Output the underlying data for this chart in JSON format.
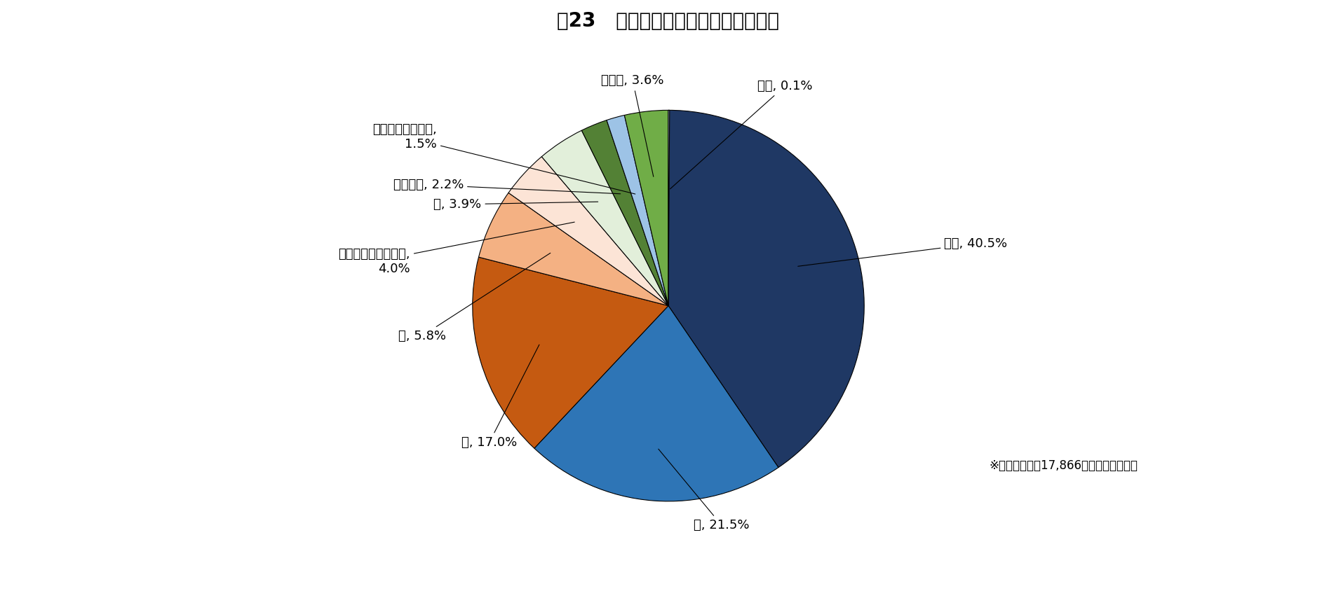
{
  "title": "図23   被虐待者からみた虐待者の続柄",
  "labels": [
    "息子",
    "夫",
    "娘",
    "妻",
    "息子の配偶者（嫁）",
    "孫",
    "兄弟姉妹",
    "娘の配偶者（婿）",
    "その他",
    "不明"
  ],
  "values": [
    40.5,
    21.5,
    17.0,
    5.8,
    4.0,
    3.9,
    2.2,
    1.5,
    3.6,
    0.1
  ],
  "colors": [
    "#1F3864",
    "#2E75B6",
    "#C55A11",
    "#F4B183",
    "#FCE4D6",
    "#E2EFDA",
    "#538135",
    "#9DC3E6",
    "#70AD47",
    "#BDD7EE"
  ],
  "annotation": "※虐待者の総数17,866人における割合。",
  "background_color": "#FFFFFF",
  "title_fontsize": 20,
  "label_fontsize": 13,
  "annotation_fontsize": 12,
  "startangle": 90,
  "label_configs": [
    {
      "text": "息子, 40.5%",
      "xt": 1.55,
      "yt": 0.3,
      "ha": "left",
      "va": "center",
      "arrow_r": 0.75
    },
    {
      "text": "夫, 21.5%",
      "xt": 0.3,
      "yt": -1.25,
      "ha": "center",
      "va": "top",
      "arrow_r": 0.8
    },
    {
      "text": "娘, 17.0%",
      "xt": -0.85,
      "yt": -0.82,
      "ha": "right",
      "va": "center",
      "arrow_r": 0.75
    },
    {
      "text": "妻, 5.8%",
      "xt": -1.25,
      "yt": -0.22,
      "ha": "right",
      "va": "center",
      "arrow_r": 0.72
    },
    {
      "text": "息子の配偶者（嫁）,\n4.0%",
      "xt": -1.45,
      "yt": 0.2,
      "ha": "right",
      "va": "center",
      "arrow_r": 0.7
    },
    {
      "text": "孫, 3.9%",
      "xt": -1.05,
      "yt": 0.52,
      "ha": "right",
      "va": "center",
      "arrow_r": 0.7
    },
    {
      "text": "兄弟姉妹, 2.2%",
      "xt": -1.15,
      "yt": 0.63,
      "ha": "right",
      "va": "center",
      "arrow_r": 0.68
    },
    {
      "text": "娘の配偶者（婿）,\n1.5%",
      "xt": -1.3,
      "yt": 0.9,
      "ha": "right",
      "va": "center",
      "arrow_r": 0.65
    },
    {
      "text": "その他, 3.6%",
      "xt": -0.2,
      "yt": 1.18,
      "ha": "center",
      "va": "bottom",
      "arrow_r": 0.72
    },
    {
      "text": "不明, 0.1%",
      "xt": 0.5,
      "yt": 1.15,
      "ha": "left",
      "va": "bottom",
      "arrow_r": 0.65
    }
  ]
}
